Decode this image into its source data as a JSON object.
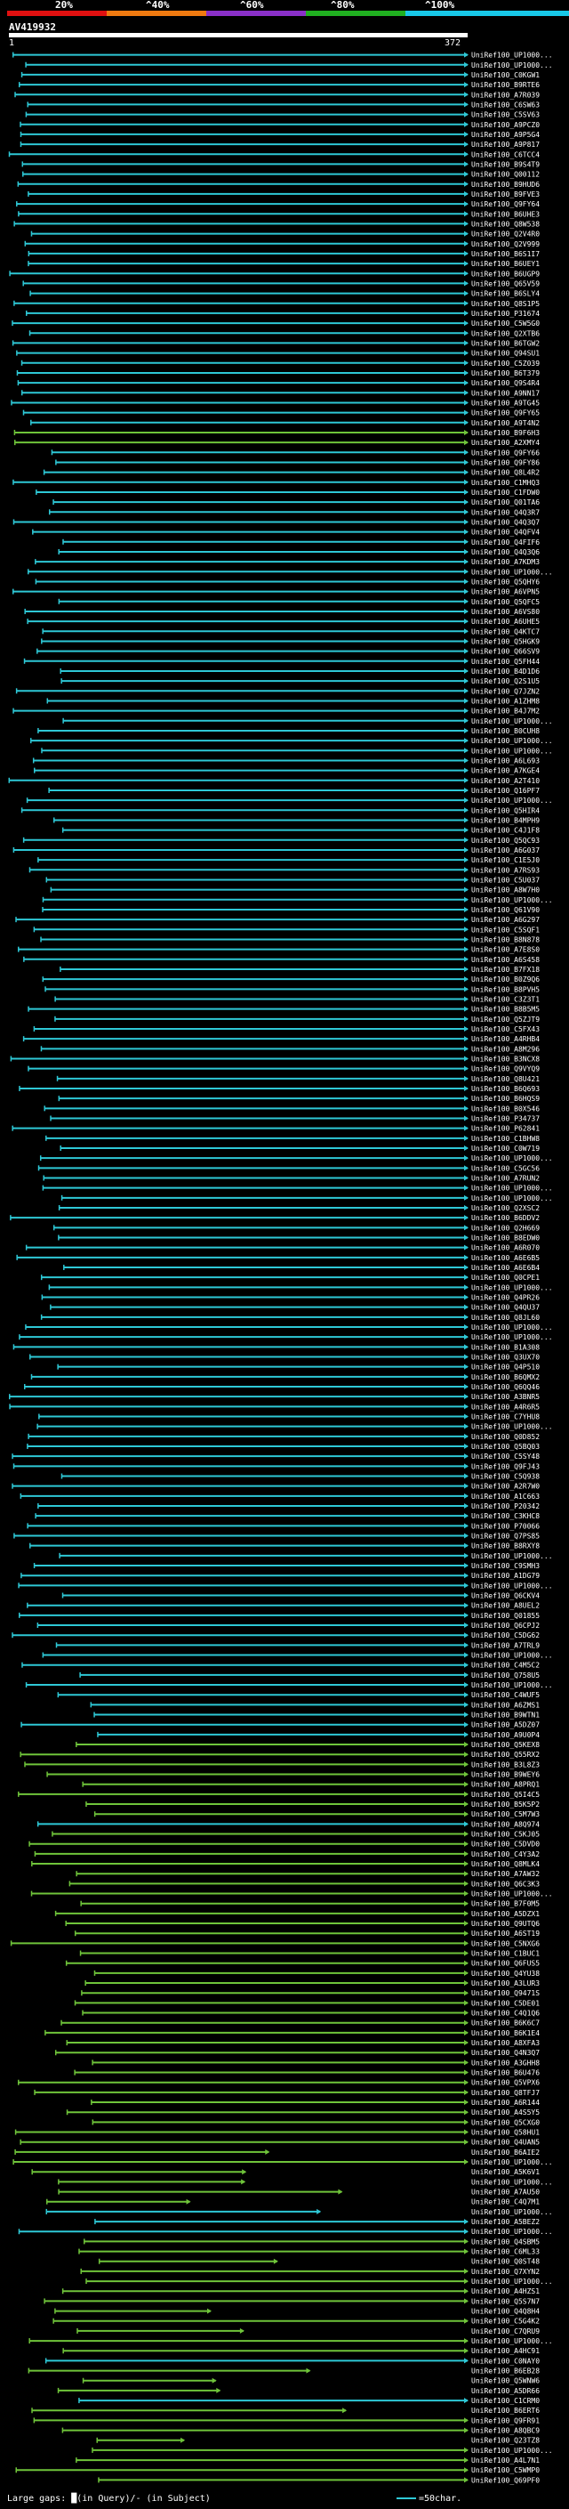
{
  "header": {
    "scale_labels": [
      "20%",
      "^40%",
      "^60%",
      "^80%",
      "^100%"
    ],
    "band_colors": [
      "#e01010",
      "#f07a10",
      "#8a30c8",
      "#20b020",
      "#18c8e8"
    ]
  },
  "query": {
    "id": "AV419932",
    "start": "1",
    "end": "372"
  },
  "colors": {
    "cyan": "#2ec8d6",
    "green": "#6fc43a",
    "gap_query": "#ffffff",
    "gap_subject": "#ffe020"
  },
  "footer": {
    "gaps_label": "Large gaps: █(in Query)/- (in Subject)",
    "legend_label": "=50char."
  },
  "chart_data": {
    "type": "alignment-overview",
    "query_length": 372,
    "hits": [
      {
        "label": "UniRef100_UP1000...",
        "c": "c"
      },
      {
        "label": "UniRef100_UP1000...",
        "c": "c"
      },
      {
        "label": "UniRef100_C0KGW1",
        "c": "c"
      },
      {
        "label": "UniRef100_B9RTE6",
        "c": "c"
      },
      {
        "label": "UniRef100_A7R039",
        "c": "c"
      },
      {
        "label": "UniRef100_C6SW63",
        "c": "c"
      },
      {
        "label": "UniRef100_C5SV63",
        "c": "c"
      },
      {
        "label": "UniRef100_A9PCZ0",
        "c": "c"
      },
      {
        "label": "UniRef100_A9P5G4",
        "c": "c"
      },
      {
        "label": "UniRef100_A9P817",
        "c": "c"
      },
      {
        "label": "UniRef100_C6TCC4",
        "c": "c"
      },
      {
        "label": "UniRef100_B9S4T9",
        "c": "c"
      },
      {
        "label": "UniRef100_Q00112",
        "c": "c"
      },
      {
        "label": "UniRef100_B9HUD6",
        "c": "c"
      },
      {
        "label": "UniRef100_B9FVE3",
        "c": "c"
      },
      {
        "label": "UniRef100_Q9FY64",
        "c": "c"
      },
      {
        "label": "UniRef100_B6UHE3",
        "c": "c"
      },
      {
        "label": "UniRef100_Q8W538",
        "c": "c"
      },
      {
        "label": "UniRef100_Q2V4R0",
        "c": "c"
      },
      {
        "label": "UniRef100_Q2V999",
        "c": "c"
      },
      {
        "label": "UniRef100_B6S1I7",
        "c": "c"
      },
      {
        "label": "UniRef100_B6UEY1",
        "c": "c"
      },
      {
        "label": "UniRef100_B6UGP9",
        "c": "c"
      },
      {
        "label": "UniRef100_Q65V59",
        "c": "c"
      },
      {
        "label": "UniRef100_B6SLY4",
        "c": "c"
      },
      {
        "label": "UniRef100_Q8S1P5",
        "c": "c"
      },
      {
        "label": "UniRef100_P31674",
        "c": "c"
      },
      {
        "label": "UniRef100_C5W5G0",
        "c": "c"
      },
      {
        "label": "UniRef100_Q2XTB6",
        "c": "c"
      },
      {
        "label": "UniRef100_B6TGW2",
        "c": "c"
      },
      {
        "label": "UniRef100_Q94SU1",
        "c": "c"
      },
      {
        "label": "UniRef100_C5Z039",
        "c": "c"
      },
      {
        "label": "UniRef100_B6T379",
        "c": "c"
      },
      {
        "label": "UniRef100_Q9S4R4",
        "c": "c"
      },
      {
        "label": "UniRef100_A9NN17",
        "c": "c"
      },
      {
        "label": "UniRef100_A9TG45",
        "c": "c"
      },
      {
        "label": "UniRef100_Q9FY65",
        "c": "c"
      },
      {
        "label": "UniRef100_A9T4N2",
        "c": "c"
      },
      {
        "label": "UniRef100_B9F6H3",
        "c": "g"
      },
      {
        "label": "UniRef100_A2XMY4",
        "c": "g"
      },
      {
        "label": "UniRef100_Q9FY66",
        "c": "c"
      },
      {
        "label": "UniRef100_Q9FY86",
        "c": "c"
      },
      {
        "label": "UniRef100_Q8L4R2",
        "c": "c"
      },
      {
        "label": "UniRef100_C1MHQ3",
        "c": "c"
      },
      {
        "label": "UniRef100_C1FDW0",
        "c": "c"
      },
      {
        "label": "UniRef100_Q01TA6",
        "c": "c"
      },
      {
        "label": "UniRef100_Q4Q3R7",
        "c": "c"
      },
      {
        "label": "UniRef100_Q4Q3Q7",
        "c": "c"
      },
      {
        "label": "UniRef100_Q4QFV4",
        "c": "c"
      },
      {
        "label": "UniRef100_Q4FIF6",
        "c": "c"
      },
      {
        "label": "UniRef100_Q4Q3Q6",
        "c": "c"
      },
      {
        "label": "UniRef100_A7KDM3",
        "c": "c"
      },
      {
        "label": "UniRef100_UP1000...",
        "c": "c"
      },
      {
        "label": "UniRef100_Q5QHY6",
        "c": "c"
      },
      {
        "label": "UniRef100_A6VPN5",
        "c": "c"
      },
      {
        "label": "UniRef100_Q5QFC5",
        "c": "c"
      },
      {
        "label": "UniRef100_A6VS80",
        "c": "c"
      },
      {
        "label": "UniRef100_A6UHE5",
        "c": "c"
      },
      {
        "label": "UniRef100_Q4KTC7",
        "c": "c"
      },
      {
        "label": "UniRef100_Q5HGK9",
        "c": "c"
      },
      {
        "label": "UniRef100_Q66SV9",
        "c": "c"
      },
      {
        "label": "UniRef100_Q5FH44",
        "c": "c"
      },
      {
        "label": "UniRef100_B4D1D6",
        "c": "c"
      },
      {
        "label": "UniRef100_Q2S1U5",
        "c": "c"
      },
      {
        "label": "UniRef100_Q7JZN2",
        "c": "c"
      },
      {
        "label": "UniRef100_A1ZHM8",
        "c": "c"
      },
      {
        "label": "UniRef100_B4J7M2",
        "c": "c"
      },
      {
        "label": "UniRef100_UP1000...",
        "c": "c"
      },
      {
        "label": "UniRef100_B0CUH8",
        "c": "c"
      },
      {
        "label": "UniRef100_UP1000...",
        "c": "c"
      },
      {
        "label": "UniRef100_UP1000...",
        "c": "c"
      },
      {
        "label": "UniRef100_A6L693",
        "c": "c"
      },
      {
        "label": "UniRef100_A7KGE4",
        "c": "c"
      },
      {
        "label": "UniRef100_A2T410",
        "c": "c"
      },
      {
        "label": "UniRef100_Q16PF7",
        "c": "c"
      },
      {
        "label": "UniRef100_UP1000...",
        "c": "c"
      },
      {
        "label": "UniRef100_Q5HIR4",
        "c": "c"
      },
      {
        "label": "UniRef100_B4MPH9",
        "c": "c"
      },
      {
        "label": "UniRef100_C4J1F8",
        "c": "c"
      },
      {
        "label": "UniRef100_Q5QC93",
        "c": "c"
      },
      {
        "label": "UniRef100_A6G037",
        "c": "c"
      },
      {
        "label": "UniRef100_C1E5J0",
        "c": "c"
      },
      {
        "label": "UniRef100_A7RS93",
        "c": "c"
      },
      {
        "label": "UniRef100_C5U037",
        "c": "c"
      },
      {
        "label": "UniRef100_A8W7H0",
        "c": "c"
      },
      {
        "label": "UniRef100_UP1000...",
        "c": "c"
      },
      {
        "label": "UniRef100_Q61V90",
        "c": "c"
      },
      {
        "label": "UniRef100_A6G297",
        "c": "c"
      },
      {
        "label": "UniRef100_C5SQF1",
        "c": "c"
      },
      {
        "label": "UniRef100_B8N878",
        "c": "c"
      },
      {
        "label": "UniRef100_A7E8S0",
        "c": "c"
      },
      {
        "label": "UniRef100_A6S458",
        "c": "c"
      },
      {
        "label": "UniRef100_B7FX18",
        "c": "c"
      },
      {
        "label": "UniRef100_B0Z9Q6",
        "c": "c"
      },
      {
        "label": "UniRef100_B8PVH5",
        "c": "c"
      },
      {
        "label": "UniRef100_C3Z3T1",
        "c": "c"
      },
      {
        "label": "UniRef100_B8B5M5",
        "c": "c"
      },
      {
        "label": "UniRef100_Q5ZJT9",
        "c": "c"
      },
      {
        "label": "UniRef100_C5FX43",
        "c": "c"
      },
      {
        "label": "UniRef100_A4RHB4",
        "c": "c"
      },
      {
        "label": "UniRef100_A8M296",
        "c": "c"
      },
      {
        "label": "UniRef100_B3NCX8",
        "c": "c"
      },
      {
        "label": "UniRef100_Q9VYQ9",
        "c": "c"
      },
      {
        "label": "UniRef100_Q8U421",
        "c": "c"
      },
      {
        "label": "UniRef100_B6Q693",
        "c": "c"
      },
      {
        "label": "UniRef100_B6HQS9",
        "c": "c"
      },
      {
        "label": "UniRef100_B0X546",
        "c": "c"
      },
      {
        "label": "UniRef100_P34737",
        "c": "c"
      },
      {
        "label": "UniRef100_P62841",
        "c": "c"
      },
      {
        "label": "UniRef100_C1BHW8",
        "c": "c"
      },
      {
        "label": "UniRef100_C0W719",
        "c": "c"
      },
      {
        "label": "UniRef100_UP1000...",
        "c": "c"
      },
      {
        "label": "UniRef100_C5GC56",
        "c": "c"
      },
      {
        "label": "UniRef100_A7RUN2",
        "c": "c"
      },
      {
        "label": "UniRef100_UP1000...",
        "c": "c"
      },
      {
        "label": "UniRef100_UP1000...",
        "c": "c"
      },
      {
        "label": "UniRef100_Q2XSC2",
        "c": "c"
      },
      {
        "label": "UniRef100_B6DDV2",
        "c": "c"
      },
      {
        "label": "UniRef100_Q2H669",
        "c": "c"
      },
      {
        "label": "UniRef100_B8EDW0",
        "c": "c"
      },
      {
        "label": "UniRef100_A6R070",
        "c": "c"
      },
      {
        "label": "UniRef100_A6E6B5",
        "c": "c"
      },
      {
        "label": "UniRef100_A6E6B4",
        "c": "c"
      },
      {
        "label": "UniRef100_Q0CPE1",
        "c": "c"
      },
      {
        "label": "UniRef100_UP1000...",
        "c": "c"
      },
      {
        "label": "UniRef100_Q4PR26",
        "c": "c"
      },
      {
        "label": "UniRef100_Q4QU37",
        "c": "c"
      },
      {
        "label": "UniRef100_Q8JL60",
        "c": "c"
      },
      {
        "label": "UniRef100_UP1000...",
        "c": "c"
      },
      {
        "label": "UniRef100_UP1000...",
        "c": "c"
      },
      {
        "label": "UniRef100_B1A308",
        "c": "c"
      },
      {
        "label": "UniRef100_Q3UX70",
        "c": "c"
      },
      {
        "label": "UniRef100_Q4P510",
        "c": "c"
      },
      {
        "label": "UniRef100_B6QMX2",
        "c": "c"
      },
      {
        "label": "UniRef100_Q6QQ46",
        "c": "c"
      },
      {
        "label": "UniRef100_A3BNR5",
        "c": "c"
      },
      {
        "label": "UniRef100_A4R6R5",
        "c": "c"
      },
      {
        "label": "UniRef100_C7YHU8",
        "c": "c"
      },
      {
        "label": "UniRef100_UP1000...",
        "c": "c"
      },
      {
        "label": "UniRef100_Q0D852",
        "c": "c"
      },
      {
        "label": "UniRef100_Q5BQ03",
        "c": "c"
      },
      {
        "label": "UniRef100_C5SY48",
        "c": "c"
      },
      {
        "label": "UniRef100_Q9FJ43",
        "c": "c"
      },
      {
        "label": "UniRef100_C5Q938",
        "c": "c"
      },
      {
        "label": "UniRef100_A2R7W0",
        "c": "c"
      },
      {
        "label": "UniRef100_A1C663",
        "c": "c"
      },
      {
        "label": "UniRef100_P20342",
        "c": "c"
      },
      {
        "label": "UniRef100_C3KHC8",
        "c": "c"
      },
      {
        "label": "UniRef100_P70066",
        "c": "c"
      },
      {
        "label": "UniRef100_Q7PS85",
        "c": "c"
      },
      {
        "label": "UniRef100_B8RXY8",
        "c": "c"
      },
      {
        "label": "UniRef100_UP1000...",
        "c": "c"
      },
      {
        "label": "UniRef100_C9SMH3",
        "c": "c"
      },
      {
        "label": "UniRef100_A1DG79",
        "c": "c"
      },
      {
        "label": "UniRef100_UP1000...",
        "c": "c"
      },
      {
        "label": "UniRef100_Q6CKV4",
        "c": "c"
      },
      {
        "label": "UniRef100_A8UEL2",
        "c": "c"
      },
      {
        "label": "UniRef100_Q01855",
        "c": "c"
      },
      {
        "label": "UniRef100_Q6CPJ2",
        "c": "c"
      },
      {
        "label": "UniRef100_C5DG62",
        "c": "c"
      },
      {
        "label": "UniRef100_A7TRL9",
        "c": "c"
      },
      {
        "label": "UniRef100_UP1000...",
        "c": "c"
      },
      {
        "label": "UniRef100_C4M5C2",
        "c": "c"
      },
      {
        "label": "UniRef100_Q758U5",
        "c": "c"
      },
      {
        "label": "UniRef100_UP1000...",
        "c": "c"
      },
      {
        "label": "UniRef100_C4WUF5",
        "c": "c"
      },
      {
        "label": "UniRef100_A6ZMS1",
        "c": "c"
      },
      {
        "label": "UniRef100_B9WTN1",
        "c": "c"
      },
      {
        "label": "UniRef100_A5DZ07",
        "c": "c"
      },
      {
        "label": "UniRef100_A9U0P4",
        "c": "c"
      },
      {
        "label": "UniRef100_Q5KEX8",
        "c": "g"
      },
      {
        "label": "UniRef100_Q55RX2",
        "c": "g"
      },
      {
        "label": "UniRef100_B3L8Z3",
        "c": "g"
      },
      {
        "label": "UniRef100_B9WEY6",
        "c": "g"
      },
      {
        "label": "UniRef100_A8PRQ1",
        "c": "g"
      },
      {
        "label": "UniRef100_Q5I4C5",
        "c": "g"
      },
      {
        "label": "UniRef100_B5K5P2",
        "c": "g"
      },
      {
        "label": "UniRef100_C5M7W3",
        "c": "g"
      },
      {
        "label": "UniRef100_A8Q974",
        "c": "c"
      },
      {
        "label": "UniRef100_C5KJ05",
        "c": "g"
      },
      {
        "label": "UniRef100_C5DVD0",
        "c": "g"
      },
      {
        "label": "UniRef100_C4Y3A2",
        "c": "g"
      },
      {
        "label": "UniRef100_Q8MLK4",
        "c": "g"
      },
      {
        "label": "UniRef100_A7AW32",
        "c": "g"
      },
      {
        "label": "UniRef100_Q6C3K3",
        "c": "g"
      },
      {
        "label": "UniRef100_UP1000...",
        "c": "g"
      },
      {
        "label": "UniRef100_B7F0M5",
        "c": "g"
      },
      {
        "label": "UniRef100_A5DZX1",
        "c": "g"
      },
      {
        "label": "UniRef100_Q9UTQ6",
        "c": "g"
      },
      {
        "label": "UniRef100_A6ST19",
        "c": "g"
      },
      {
        "label": "UniRef100_C5NXG6",
        "c": "g"
      },
      {
        "label": "UniRef100_C1BUC1",
        "c": "g"
      },
      {
        "label": "UniRef100_Q6FUS5",
        "c": "g"
      },
      {
        "label": "UniRef100_Q4YU38",
        "c": "g"
      },
      {
        "label": "UniRef100_A3LUR3",
        "c": "g"
      },
      {
        "label": "UniRef100_Q9471S",
        "c": "g"
      },
      {
        "label": "UniRef100_C5DE01",
        "c": "g"
      },
      {
        "label": "UniRef100_C4Q1Q6",
        "c": "g"
      },
      {
        "label": "UniRef100_B6K6C7",
        "c": "g"
      },
      {
        "label": "UniRef100_B6K1E4",
        "c": "g"
      },
      {
        "label": "UniRef100_A8XFA3",
        "c": "g"
      },
      {
        "label": "UniRef100_Q4N3Q7",
        "c": "g"
      },
      {
        "label": "UniRef100_A3GHH8",
        "c": "g"
      },
      {
        "label": "UniRef100_B6U476",
        "c": "g"
      },
      {
        "label": "UniRef100_Q5VPX6",
        "c": "g"
      },
      {
        "label": "UniRef100_Q8TFJ7",
        "c": "g"
      },
      {
        "label": "UniRef100_A6R144",
        "c": "g"
      },
      {
        "label": "UniRef100_A4S5Y5",
        "c": "g"
      },
      {
        "label": "UniRef100_Q5CXG0",
        "c": "g"
      },
      {
        "label": "UniRef100_Q58HU1",
        "c": "g"
      },
      {
        "label": "UniRef100_Q4UAN5",
        "c": "g"
      },
      {
        "label": "UniRef100_B6AIE2",
        "c": "g"
      },
      {
        "label": "UniRef100_UP1000...",
        "c": "g"
      },
      {
        "label": "UniRef100_A5K6V1",
        "c": "g"
      },
      {
        "label": "UniRef100_UP1000...",
        "c": "g"
      },
      {
        "label": "UniRef100_A7AU50",
        "c": "g"
      },
      {
        "label": "UniRef100_C4Q7M1",
        "c": "g"
      },
      {
        "label": "UniRef100_UP1000...",
        "c": "c"
      },
      {
        "label": "UniRef100_A5BEZ2",
        "c": "c"
      },
      {
        "label": "UniRef100_UP1000...",
        "c": "c"
      },
      {
        "label": "UniRef100_Q4SBM5",
        "c": "g"
      },
      {
        "label": "UniRef100_C6ML33",
        "c": "g"
      },
      {
        "label": "UniRef100_Q0ST48",
        "c": "g"
      },
      {
        "label": "UniRef100_Q7XYN2",
        "c": "g"
      },
      {
        "label": "UniRef100_UP1000...",
        "c": "g"
      },
      {
        "label": "UniRef100_A4HZS1",
        "c": "g"
      },
      {
        "label": "UniRef100_Q5S7N7",
        "c": "g"
      },
      {
        "label": "UniRef100_Q4Q8H4",
        "c": "g"
      },
      {
        "label": "UniRef100_C5G4K2",
        "c": "g"
      },
      {
        "label": "UniRef100_C7QRU9",
        "c": "g"
      },
      {
        "label": "UniRef100_UP1000...",
        "c": "g"
      },
      {
        "label": "UniRef100_A4HC91",
        "c": "g"
      },
      {
        "label": "UniRef100_C0NAY0",
        "c": "c"
      },
      {
        "label": "UniRef100_B6EB28",
        "c": "g"
      },
      {
        "label": "UniRef100_Q5WNW6",
        "c": "g"
      },
      {
        "label": "UniRef100_A5DR66",
        "c": "g"
      },
      {
        "label": "UniRef100_C1CRM0",
        "c": "c"
      },
      {
        "label": "UniRef100_B6ERT6",
        "c": "g"
      },
      {
        "label": "UniRef100_Q9FR91",
        "c": "g"
      },
      {
        "label": "UniRef100_A8QBC9",
        "c": "g"
      },
      {
        "label": "UniRef100_Q23TZ8",
        "c": "g"
      },
      {
        "label": "UniRef100_UP1000...",
        "c": "g"
      },
      {
        "label": "UniRef100_A4L7N1",
        "c": "g"
      },
      {
        "label": "UniRef100_C5WMP0",
        "c": "g"
      },
      {
        "label": "UniRef100_Q69PF0",
        "c": "g"
      }
    ]
  }
}
